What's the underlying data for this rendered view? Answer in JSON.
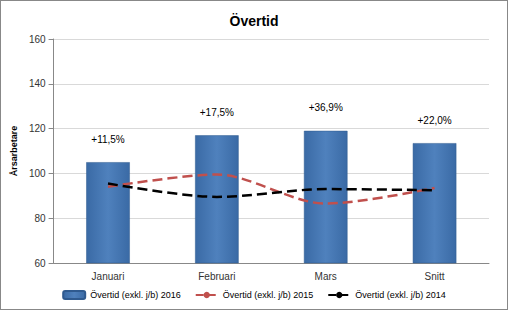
{
  "chart_data": {
    "type": "bar",
    "title": "Övertid",
    "y_label": "Årsarbetare",
    "categories": [
      "Januari",
      "Februari",
      "Mars",
      "Snitt"
    ],
    "series": [
      {
        "name": "Övertid (exkl. j/b) 2016",
        "type": "bar",
        "color": "#4f81bd",
        "values": [
          105,
          117,
          119,
          113.5
        ]
      },
      {
        "name": "Övertid (exkl. j/b) 2015",
        "type": "line",
        "color": "#c0504d",
        "line_style": "dashed",
        "values": [
          94,
          99.5,
          86.5,
          93.5
        ]
      },
      {
        "name": "Övertid (exkl. j/b) 2014",
        "type": "line",
        "color": "#000000",
        "line_style": "dashed",
        "values": [
          95.5,
          89.5,
          93,
          92.5
        ]
      }
    ],
    "annotations": [
      "+11,5%",
      "+17,5%",
      "+36,9%",
      "+22,0%"
    ],
    "ylim": [
      60,
      160
    ],
    "yticks": [
      60,
      80,
      100,
      120,
      140,
      160
    ],
    "grid": true,
    "legend": "bottom"
  }
}
